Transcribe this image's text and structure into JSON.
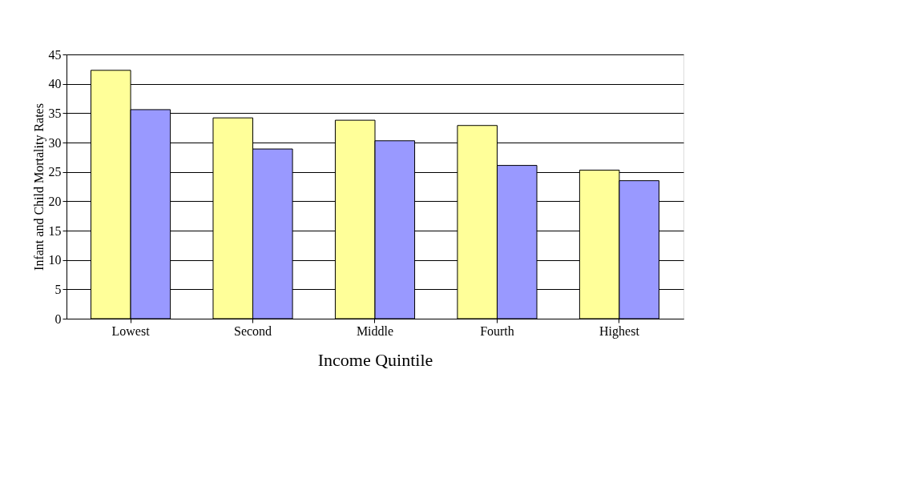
{
  "chart_data": {
    "type": "bar",
    "xlabel": "Income Quintile",
    "ylabel": "Infant and Child  Mortality Rates",
    "categories": [
      "Lowest",
      "Second",
      "Middle",
      "Fourth",
      "Highest"
    ],
    "series": [
      {
        "color": "#ffff99",
        "values": [
          42.3,
          34.2,
          33.8,
          32.9,
          25.3
        ]
      },
      {
        "color": "#9999ff",
        "values": [
          35.6,
          28.9,
          30.3,
          26.1,
          23.5
        ]
      }
    ],
    "ylim": [
      0,
      45
    ],
    "yticks": [
      0,
      5,
      10,
      15,
      20,
      25,
      30,
      35,
      40,
      45
    ],
    "grid": "y",
    "legend": false
  }
}
